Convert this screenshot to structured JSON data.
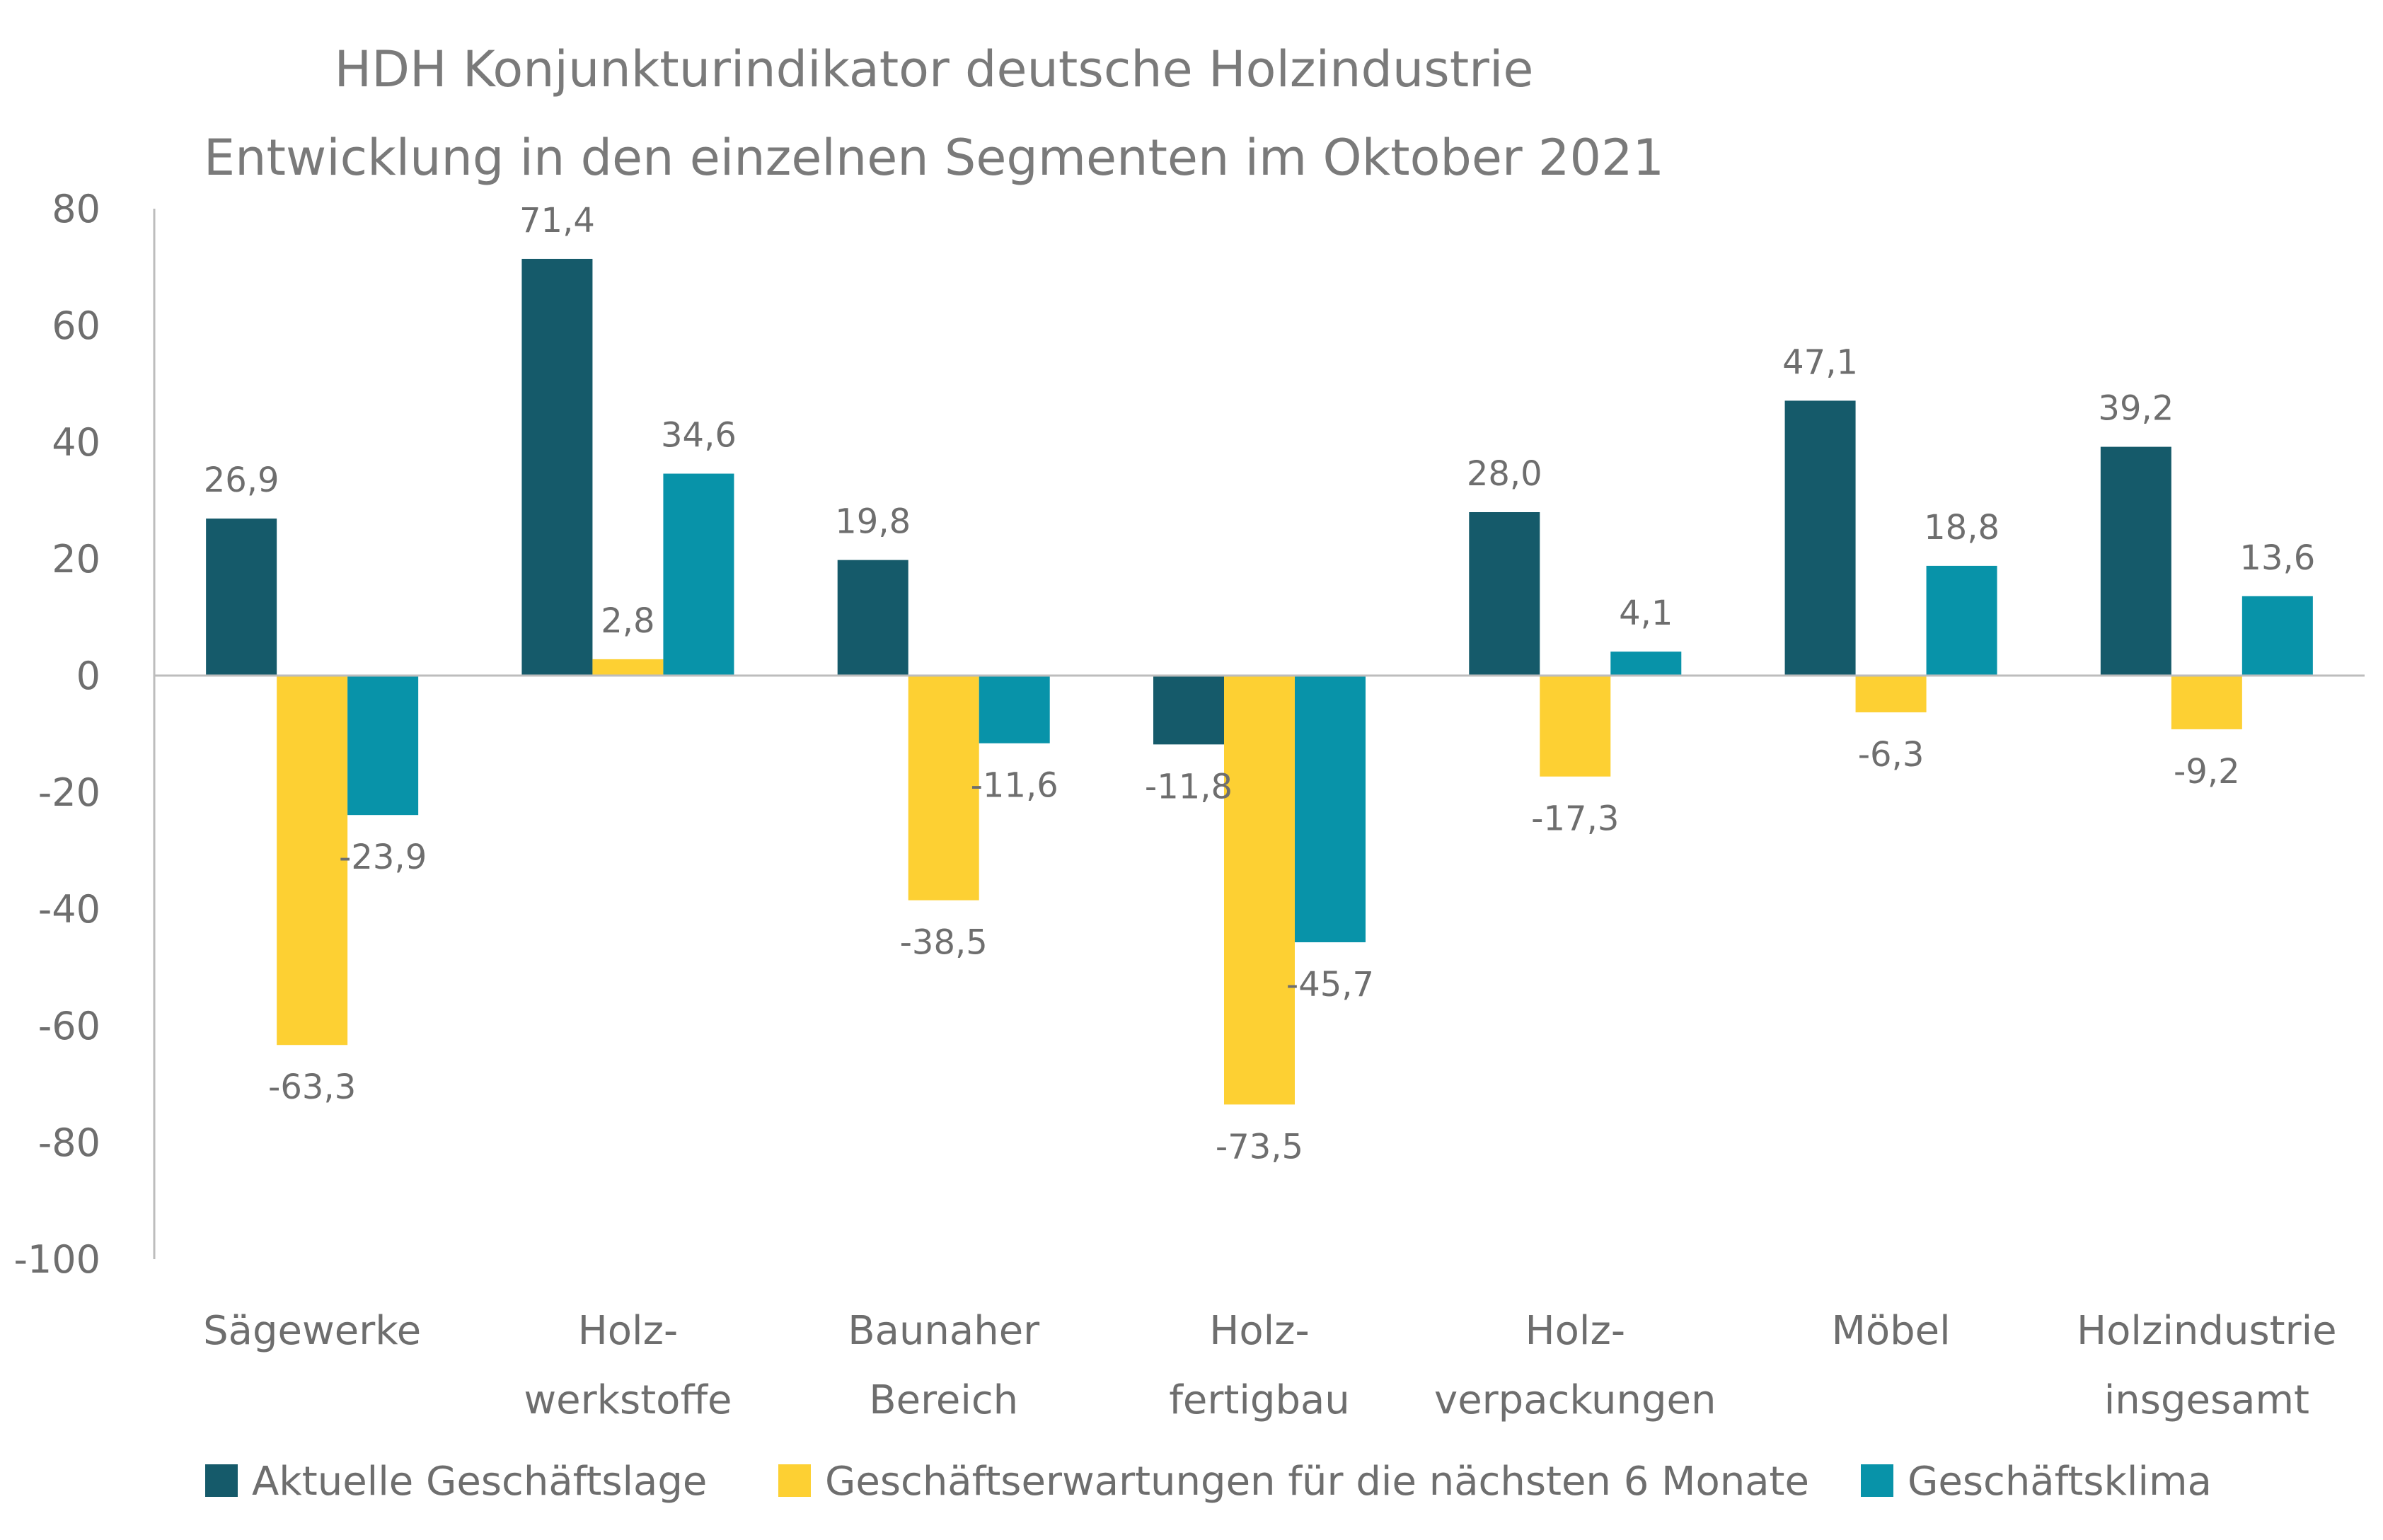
{
  "chart_data": {
    "type": "bar",
    "title": "HDH Konjunkturindikator deutsche Holzindustrie",
    "subtitle": "Entwicklung in den einzelnen Segmenten im Oktober 2021",
    "categories": [
      [
        "Sägewerke"
      ],
      [
        "Holz-",
        "werkstoffe"
      ],
      [
        "Baunaher",
        "Bereich"
      ],
      [
        "Holz-",
        "fertigbau"
      ],
      [
        "Holz-",
        "verpackungen"
      ],
      [
        "Möbel"
      ],
      [
        "Holzindustrie",
        "insgesamt"
      ]
    ],
    "series": [
      {
        "name": "Aktuelle Geschäftslage",
        "color": "#155a6a",
        "values": [
          26.9,
          71.4,
          19.8,
          -11.8,
          28.0,
          47.1,
          39.2
        ],
        "labels": [
          "26,9",
          "71,4",
          "19,8",
          "-11,8",
          "28,0",
          "47,1",
          "39,2"
        ]
      },
      {
        "name": "Geschäftserwartungen für die nächsten 6 Monate",
        "color": "#fdd033",
        "values": [
          -63.3,
          2.8,
          -38.5,
          -73.5,
          -17.3,
          -6.3,
          -9.2
        ],
        "labels": [
          "-63,3",
          "2,8",
          "-38,5",
          "-73,5",
          "-17,3",
          "-6,3",
          "-9,2"
        ]
      },
      {
        "name": "Geschäftsklima",
        "color": "#0893a9",
        "values": [
          -23.9,
          34.6,
          -11.6,
          -45.7,
          4.1,
          18.8,
          13.6
        ],
        "labels": [
          "-23,9",
          "34,6",
          "-11,6",
          "-45,7",
          "4,1",
          "18,8",
          "13,6"
        ]
      }
    ],
    "ylim": [
      -100,
      80
    ],
    "yticks": [
      80,
      60,
      40,
      20,
      0,
      -20,
      -40,
      -60,
      -80,
      -100
    ],
    "xlabel": "",
    "ylabel": "",
    "grid": false,
    "legend_position": "bottom"
  }
}
